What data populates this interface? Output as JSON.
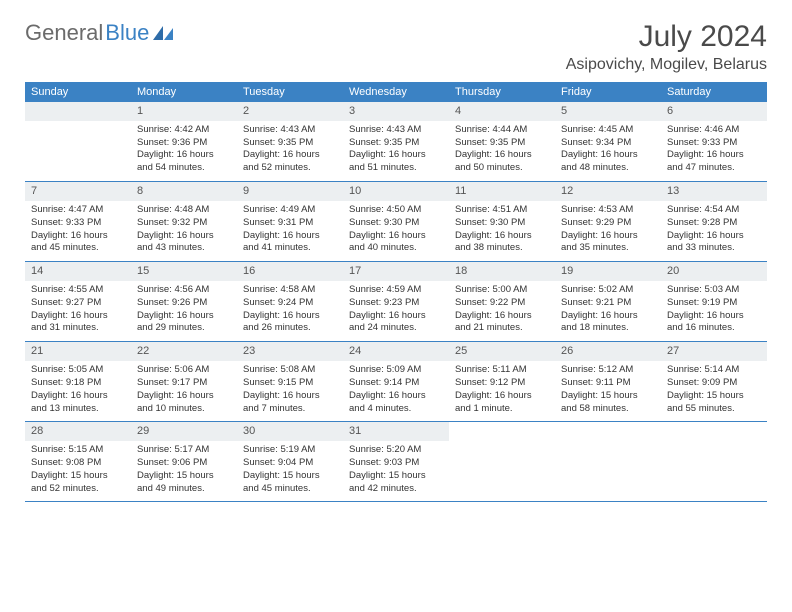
{
  "logo": {
    "text_a": "General",
    "text_b": "Blue"
  },
  "title": "July 2024",
  "location": "Asipovichy, Mogilev, Belarus",
  "colors": {
    "header_bg": "#3b82c4",
    "header_text": "#ffffff",
    "daynum_bg": "#eceff1",
    "border": "#3b82c4",
    "text": "#333333",
    "logo_gray": "#6b6b6b",
    "logo_blue": "#3b82c4"
  },
  "day_headers": [
    "Sunday",
    "Monday",
    "Tuesday",
    "Wednesday",
    "Thursday",
    "Friday",
    "Saturday"
  ],
  "weeks": [
    [
      null,
      {
        "n": "1",
        "sunrise": "4:42 AM",
        "sunset": "9:36 PM",
        "daylight": "16 hours and 54 minutes."
      },
      {
        "n": "2",
        "sunrise": "4:43 AM",
        "sunset": "9:35 PM",
        "daylight": "16 hours and 52 minutes."
      },
      {
        "n": "3",
        "sunrise": "4:43 AM",
        "sunset": "9:35 PM",
        "daylight": "16 hours and 51 minutes."
      },
      {
        "n": "4",
        "sunrise": "4:44 AM",
        "sunset": "9:35 PM",
        "daylight": "16 hours and 50 minutes."
      },
      {
        "n": "5",
        "sunrise": "4:45 AM",
        "sunset": "9:34 PM",
        "daylight": "16 hours and 48 minutes."
      },
      {
        "n": "6",
        "sunrise": "4:46 AM",
        "sunset": "9:33 PM",
        "daylight": "16 hours and 47 minutes."
      }
    ],
    [
      {
        "n": "7",
        "sunrise": "4:47 AM",
        "sunset": "9:33 PM",
        "daylight": "16 hours and 45 minutes."
      },
      {
        "n": "8",
        "sunrise": "4:48 AM",
        "sunset": "9:32 PM",
        "daylight": "16 hours and 43 minutes."
      },
      {
        "n": "9",
        "sunrise": "4:49 AM",
        "sunset": "9:31 PM",
        "daylight": "16 hours and 41 minutes."
      },
      {
        "n": "10",
        "sunrise": "4:50 AM",
        "sunset": "9:30 PM",
        "daylight": "16 hours and 40 minutes."
      },
      {
        "n": "11",
        "sunrise": "4:51 AM",
        "sunset": "9:30 PM",
        "daylight": "16 hours and 38 minutes."
      },
      {
        "n": "12",
        "sunrise": "4:53 AM",
        "sunset": "9:29 PM",
        "daylight": "16 hours and 35 minutes."
      },
      {
        "n": "13",
        "sunrise": "4:54 AM",
        "sunset": "9:28 PM",
        "daylight": "16 hours and 33 minutes."
      }
    ],
    [
      {
        "n": "14",
        "sunrise": "4:55 AM",
        "sunset": "9:27 PM",
        "daylight": "16 hours and 31 minutes."
      },
      {
        "n": "15",
        "sunrise": "4:56 AM",
        "sunset": "9:26 PM",
        "daylight": "16 hours and 29 minutes."
      },
      {
        "n": "16",
        "sunrise": "4:58 AM",
        "sunset": "9:24 PM",
        "daylight": "16 hours and 26 minutes."
      },
      {
        "n": "17",
        "sunrise": "4:59 AM",
        "sunset": "9:23 PM",
        "daylight": "16 hours and 24 minutes."
      },
      {
        "n": "18",
        "sunrise": "5:00 AM",
        "sunset": "9:22 PM",
        "daylight": "16 hours and 21 minutes."
      },
      {
        "n": "19",
        "sunrise": "5:02 AM",
        "sunset": "9:21 PM",
        "daylight": "16 hours and 18 minutes."
      },
      {
        "n": "20",
        "sunrise": "5:03 AM",
        "sunset": "9:19 PM",
        "daylight": "16 hours and 16 minutes."
      }
    ],
    [
      {
        "n": "21",
        "sunrise": "5:05 AM",
        "sunset": "9:18 PM",
        "daylight": "16 hours and 13 minutes."
      },
      {
        "n": "22",
        "sunrise": "5:06 AM",
        "sunset": "9:17 PM",
        "daylight": "16 hours and 10 minutes."
      },
      {
        "n": "23",
        "sunrise": "5:08 AM",
        "sunset": "9:15 PM",
        "daylight": "16 hours and 7 minutes."
      },
      {
        "n": "24",
        "sunrise": "5:09 AM",
        "sunset": "9:14 PM",
        "daylight": "16 hours and 4 minutes."
      },
      {
        "n": "25",
        "sunrise": "5:11 AM",
        "sunset": "9:12 PM",
        "daylight": "16 hours and 1 minute."
      },
      {
        "n": "26",
        "sunrise": "5:12 AM",
        "sunset": "9:11 PM",
        "daylight": "15 hours and 58 minutes."
      },
      {
        "n": "27",
        "sunrise": "5:14 AM",
        "sunset": "9:09 PM",
        "daylight": "15 hours and 55 minutes."
      }
    ],
    [
      {
        "n": "28",
        "sunrise": "5:15 AM",
        "sunset": "9:08 PM",
        "daylight": "15 hours and 52 minutes."
      },
      {
        "n": "29",
        "sunrise": "5:17 AM",
        "sunset": "9:06 PM",
        "daylight": "15 hours and 49 minutes."
      },
      {
        "n": "30",
        "sunrise": "5:19 AM",
        "sunset": "9:04 PM",
        "daylight": "15 hours and 45 minutes."
      },
      {
        "n": "31",
        "sunrise": "5:20 AM",
        "sunset": "9:03 PM",
        "daylight": "15 hours and 42 minutes."
      },
      null,
      null,
      null
    ]
  ],
  "labels": {
    "sunrise": "Sunrise:",
    "sunset": "Sunset:",
    "daylight": "Daylight:"
  }
}
